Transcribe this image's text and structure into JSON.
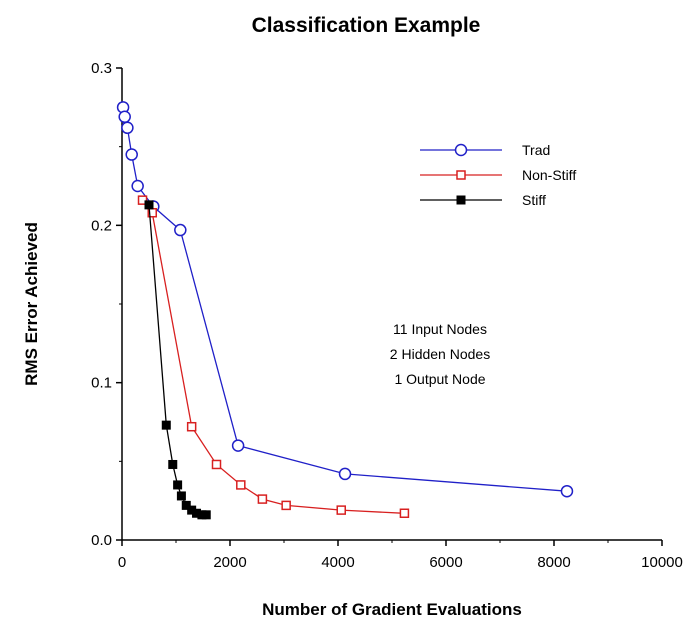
{
  "chart_data": {
    "type": "line",
    "title": "Classification Example",
    "xlabel": "Number of Gradient Evaluations",
    "ylabel": "RMS Error Achieved",
    "xlim": [
      0,
      10000
    ],
    "ylim": [
      0.0,
      0.3
    ],
    "xticks": [
      "0",
      "2000",
      "4000",
      "6000",
      "8000",
      "10000"
    ],
    "yticks": [
      "0.0",
      "0.1",
      "0.2",
      "0.3"
    ],
    "grid": false,
    "legend_position": "top-right",
    "annotations": [
      "11  Input Nodes",
      "2  Hidden Nodes",
      "1  Output Node"
    ],
    "series": [
      {
        "name": "Trad",
        "color": "#2020c8",
        "marker": "open-circle",
        "x": [
          20,
          50,
          100,
          180,
          290,
          580,
          1080,
          2150,
          4130,
          8240
        ],
        "y": [
          0.275,
          0.269,
          0.262,
          0.245,
          0.225,
          0.212,
          0.197,
          0.06,
          0.042,
          0.031
        ]
      },
      {
        "name": "Non-Stiff",
        "color": "#d82020",
        "marker": "open-square",
        "x": [
          380,
          560,
          1290,
          1750,
          2200,
          2600,
          3040,
          4060,
          5230
        ],
        "y": [
          0.216,
          0.208,
          0.072,
          0.048,
          0.035,
          0.026,
          0.022,
          0.019,
          0.017
        ]
      },
      {
        "name": "Stiff",
        "color": "#000000",
        "marker": "filled-square",
        "x": [
          500,
          820,
          940,
          1030,
          1100,
          1190,
          1290,
          1380,
          1480,
          1560
        ],
        "y": [
          0.213,
          0.073,
          0.048,
          0.035,
          0.028,
          0.022,
          0.019,
          0.017,
          0.016,
          0.016
        ]
      }
    ]
  }
}
